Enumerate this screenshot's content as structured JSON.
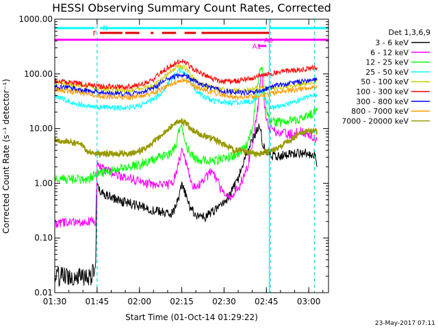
{
  "chart_data": {
    "type": "line",
    "title": "HESSI Observing Summary Count Rates, Corrected",
    "xlabel": "Start Time (01-Oct-14 01:29:22)",
    "ylabel": "Corrected Count Rate (s⁻¹ detector⁻¹)",
    "y_scale": "log",
    "ylim": [
      0.01,
      1000
    ],
    "xlim_minutes": [
      90,
      187
    ],
    "x_ticks": [
      {
        "t": 90,
        "label": "01:30"
      },
      {
        "t": 105,
        "label": "01:45"
      },
      {
        "t": 120,
        "label": "02:00"
      },
      {
        "t": 135,
        "label": "02:15"
      },
      {
        "t": 150,
        "label": "02:30"
      },
      {
        "t": 165,
        "label": "02:45"
      },
      {
        "t": 180,
        "label": "03:00"
      }
    ],
    "y_ticks": [
      {
        "v": 0.01,
        "label": "0.01"
      },
      {
        "v": 0.1,
        "label": "0.10"
      },
      {
        "v": 1,
        "label": "1.00"
      },
      {
        "v": 10,
        "label": "10.00"
      },
      {
        "v": 100,
        "label": "100.00"
      },
      {
        "v": 1000,
        "label": "1000.00"
      }
    ],
    "legend_header": "Det 1,3,6,9",
    "legend_position": "right",
    "series": [
      {
        "name": "3 - 6 keV",
        "color": "#000000",
        "x": [
          90,
          94,
          97,
          100,
          103,
          104.5,
          105,
          106,
          110,
          115,
          120,
          125,
          130,
          132,
          133,
          134,
          135,
          136,
          137,
          138,
          140,
          143,
          146,
          149,
          152,
          155,
          158,
          161,
          162.5,
          163,
          163.5,
          164,
          165,
          165.5,
          166,
          168,
          171,
          174,
          177,
          180,
          182,
          183
        ],
        "y": [
          0.02,
          0.02,
          0.02,
          0.02,
          0.02,
          0.03,
          0.9,
          0.7,
          0.55,
          0.45,
          0.38,
          0.32,
          0.28,
          0.3,
          0.38,
          0.55,
          0.9,
          0.7,
          0.5,
          0.36,
          0.26,
          0.24,
          0.3,
          0.4,
          0.6,
          1.2,
          3.5,
          8,
          12,
          10,
          6,
          4.5,
          4,
          3.8,
          3.5,
          3.2,
          3.2,
          3.5,
          3.6,
          3.5,
          3.5,
          2
        ]
      },
      {
        "name": "6 - 12 keV",
        "color": "#ff00ff",
        "x": [
          90,
          94,
          97,
          100,
          103,
          104.5,
          105,
          106,
          110,
          115,
          120,
          125,
          130,
          132,
          133,
          134,
          135,
          136,
          137,
          138,
          139,
          140,
          143,
          145,
          147,
          149,
          152,
          155,
          158,
          160,
          162,
          163,
          163.5,
          164,
          164.5,
          165,
          166,
          168,
          171,
          174,
          177,
          180,
          182,
          183
        ],
        "y": [
          0.18,
          0.19,
          0.2,
          0.2,
          0.2,
          0.2,
          2.2,
          1.9,
          1.6,
          1.3,
          1.1,
          0.95,
          0.9,
          1.1,
          1.5,
          2.5,
          4,
          2.8,
          1.8,
          1.2,
          0.9,
          0.85,
          1.1,
          1.6,
          1.3,
          0.75,
          0.55,
          0.8,
          1.8,
          5,
          25,
          100,
          75,
          45,
          22,
          14,
          10,
          9,
          8,
          8,
          9,
          8,
          7,
          6
        ]
      },
      {
        "name": "12 - 25 keV",
        "color": "#00ff00",
        "x": [
          90,
          94,
          98,
          102,
          105,
          108,
          112,
          116,
          120,
          124,
          128,
          131,
          133,
          134,
          135,
          136,
          137,
          138,
          140,
          143,
          146,
          149,
          152,
          155,
          158,
          160,
          161,
          162,
          162.5,
          163,
          163.5,
          164,
          164.5,
          165,
          166,
          168,
          171,
          174,
          177,
          180,
          182,
          183
        ],
        "y": [
          1.2,
          1.2,
          1.2,
          1.2,
          1.5,
          1.6,
          1.8,
          2.0,
          2.2,
          2.6,
          3,
          3.5,
          5,
          9,
          12,
          7,
          4.5,
          3.5,
          2.8,
          2.6,
          2.6,
          2.8,
          3,
          3.5,
          5,
          10,
          25,
          60,
          120,
          140,
          120,
          80,
          40,
          20,
          14,
          13,
          13,
          14,
          15,
          17,
          20,
          22
        ]
      },
      {
        "name": "25 - 50 keV",
        "color": "#00ffff",
        "x": [
          90,
          93,
          96,
          100,
          105,
          110,
          115,
          120,
          124,
          128,
          131,
          133,
          134,
          135,
          136,
          137,
          138,
          140,
          143,
          146,
          150,
          155,
          160,
          162,
          163,
          164,
          165,
          166,
          168,
          170,
          172,
          174,
          176,
          178,
          180,
          182,
          183
        ],
        "y": [
          40,
          35,
          30,
          27,
          25,
          24,
          24,
          26,
          32,
          45,
          75,
          100,
          115,
          120,
          110,
          90,
          70,
          50,
          38,
          32,
          30,
          30,
          32,
          38,
          50,
          42,
          32,
          25,
          24,
          26,
          28,
          30,
          32,
          35,
          38,
          40,
          42
        ]
      },
      {
        "name": "50 - 100 keV",
        "color": "#cccc00",
        "x": [
          90,
          95,
          100,
          105,
          110,
          115,
          120,
          125,
          128,
          131,
          133,
          134,
          135,
          136,
          137,
          138,
          140,
          143,
          146,
          150,
          155,
          160,
          163,
          165,
          168,
          172,
          176,
          180,
          183
        ],
        "y": [
          70,
          65,
          60,
          55,
          52,
          50,
          52,
          62,
          80,
          110,
          135,
          140,
          138,
          130,
          115,
          95,
          75,
          62,
          55,
          50,
          50,
          52,
          55,
          54,
          55,
          58,
          62,
          68,
          75
        ]
      },
      {
        "name": "100 - 300 keV",
        "color": "#ff0000",
        "x": [
          90,
          95,
          100,
          105,
          110,
          115,
          120,
          125,
          128,
          131,
          133,
          134,
          135,
          136,
          137,
          138,
          140,
          143,
          146,
          150,
          155,
          160,
          163,
          165,
          168,
          172,
          176,
          180,
          183
        ],
        "y": [
          75,
          70,
          65,
          60,
          58,
          58,
          62,
          80,
          110,
          140,
          160,
          170,
          170,
          165,
          150,
          135,
          115,
          95,
          80,
          72,
          75,
          85,
          95,
          100,
          105,
          112,
          118,
          125,
          132
        ]
      },
      {
        "name": "300 - 800 keV",
        "color": "#0000ff",
        "x": [
          90,
          95,
          100,
          105,
          110,
          115,
          120,
          125,
          128,
          131,
          133,
          134,
          135,
          136,
          137,
          138,
          140,
          143,
          146,
          150,
          155,
          160,
          163,
          165,
          168,
          172,
          176,
          180,
          183
        ],
        "y": [
          58,
          55,
          50,
          46,
          44,
          43,
          45,
          55,
          70,
          85,
          92,
          95,
          96,
          95,
          90,
          82,
          72,
          62,
          55,
          48,
          46,
          46,
          50,
          54,
          60,
          65,
          70,
          75,
          80
        ]
      },
      {
        "name": "800 - 7000 keV",
        "color": "#ff9900",
        "x": [
          90,
          95,
          100,
          105,
          110,
          115,
          120,
          125,
          128,
          131,
          133,
          134,
          135,
          136,
          137,
          138,
          140,
          143,
          146,
          150,
          155,
          160,
          163,
          165,
          168,
          172,
          176,
          180,
          183
        ],
        "y": [
          52,
          48,
          44,
          40,
          38,
          37,
          38,
          45,
          55,
          65,
          72,
          75,
          76,
          75,
          72,
          66,
          58,
          50,
          45,
          40,
          38,
          38,
          40,
          42,
          45,
          48,
          52,
          56,
          60
        ]
      },
      {
        "name": "7000 - 20000 keV",
        "color": "#999900",
        "x": [
          90,
          93,
          96,
          99,
          101,
          103,
          105,
          110,
          114,
          118,
          121,
          124,
          127,
          130,
          132,
          134,
          135,
          136,
          137,
          138,
          140,
          143,
          146,
          149,
          152,
          154,
          156,
          158,
          160,
          162,
          164,
          166,
          168,
          170,
          172,
          174,
          176,
          178,
          180,
          182,
          183
        ],
        "y": [
          6,
          5.8,
          5.5,
          5.2,
          4,
          3.5,
          3.5,
          3.5,
          3.5,
          3.5,
          4,
          5,
          7,
          9.5,
          12,
          13,
          14,
          13,
          12,
          10,
          8.5,
          7.5,
          6.5,
          5.5,
          4.5,
          4,
          4,
          3.6,
          3.5,
          3.5,
          3.6,
          3.8,
          4.2,
          4.8,
          5.5,
          6.5,
          7.5,
          8.5,
          9,
          9.5,
          8.5
        ]
      }
    ],
    "flags": {
      "N": {
        "label": "N",
        "color": "#00ffff",
        "segments": [
          [
            90,
            104
          ],
          [
            106,
            165
          ],
          [
            166,
            187
          ]
        ]
      },
      "F": {
        "label": "F",
        "color": "#dd0000",
        "segments": [
          [
            106,
            114
          ],
          [
            115,
            120
          ],
          [
            124,
            125
          ],
          [
            128,
            133
          ],
          [
            136,
            140
          ],
          [
            142,
            166
          ]
        ]
      },
      "magenta": {
        "color": "#ff00ff",
        "segments": [
          [
            90,
            187
          ]
        ]
      },
      "A0": {
        "label": "A0",
        "color": "#ff00ff",
        "segments": [
          [
            164,
            166
          ]
        ]
      },
      "A1": {
        "label": "A1",
        "color": "#ff00ff",
        "segments": [
          [
            162,
            165
          ]
        ]
      }
    },
    "vlines": [
      {
        "t": 105,
        "color": "#00cccc",
        "style": "dashed"
      },
      {
        "t": 166,
        "color": "#00cccc",
        "style": "solid"
      },
      {
        "t": 166.5,
        "color": "#00cccc",
        "style": "dashed"
      },
      {
        "t": 182,
        "color": "#00cccc",
        "style": "dashed"
      }
    ]
  },
  "footer": {
    "timestamp": "23-May-2017 07:11"
  }
}
